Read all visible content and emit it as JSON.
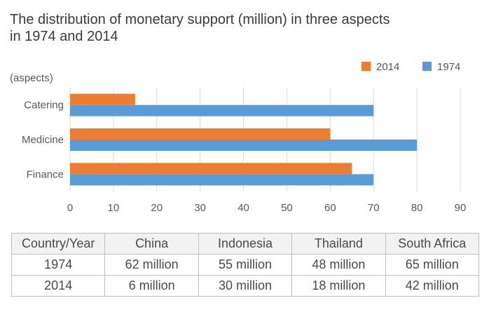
{
  "chart_data": {
    "type": "bar",
    "orientation": "horizontal",
    "title_lines": [
      "The distribution of monetary support (million) in three aspects",
      "in 1974 and 2014"
    ],
    "ylabel": "(aspects)",
    "categories": [
      "Catering",
      "Medicine",
      "Finance"
    ],
    "series": [
      {
        "name": "2014",
        "color": "#ed7d31",
        "values": [
          15,
          60,
          65
        ]
      },
      {
        "name": "1974",
        "color": "#5b9bd5",
        "values": [
          70,
          80,
          70
        ]
      }
    ],
    "xlim": [
      0,
      90
    ],
    "xticks": [
      "0",
      "10",
      "20",
      "30",
      "40",
      "50",
      "60",
      "70",
      "80",
      "90"
    ],
    "grid": "vertical",
    "legend_position": "top-right"
  },
  "table": {
    "headers": [
      "Country/Year",
      "China",
      "Indonesia",
      "Thailand",
      "South Africa"
    ],
    "rows": [
      [
        "1974",
        "62 million",
        "55 million",
        "48 million",
        "65 million"
      ],
      [
        "2014",
        "6 million",
        "30 million",
        "18 million",
        "42 million"
      ]
    ]
  }
}
